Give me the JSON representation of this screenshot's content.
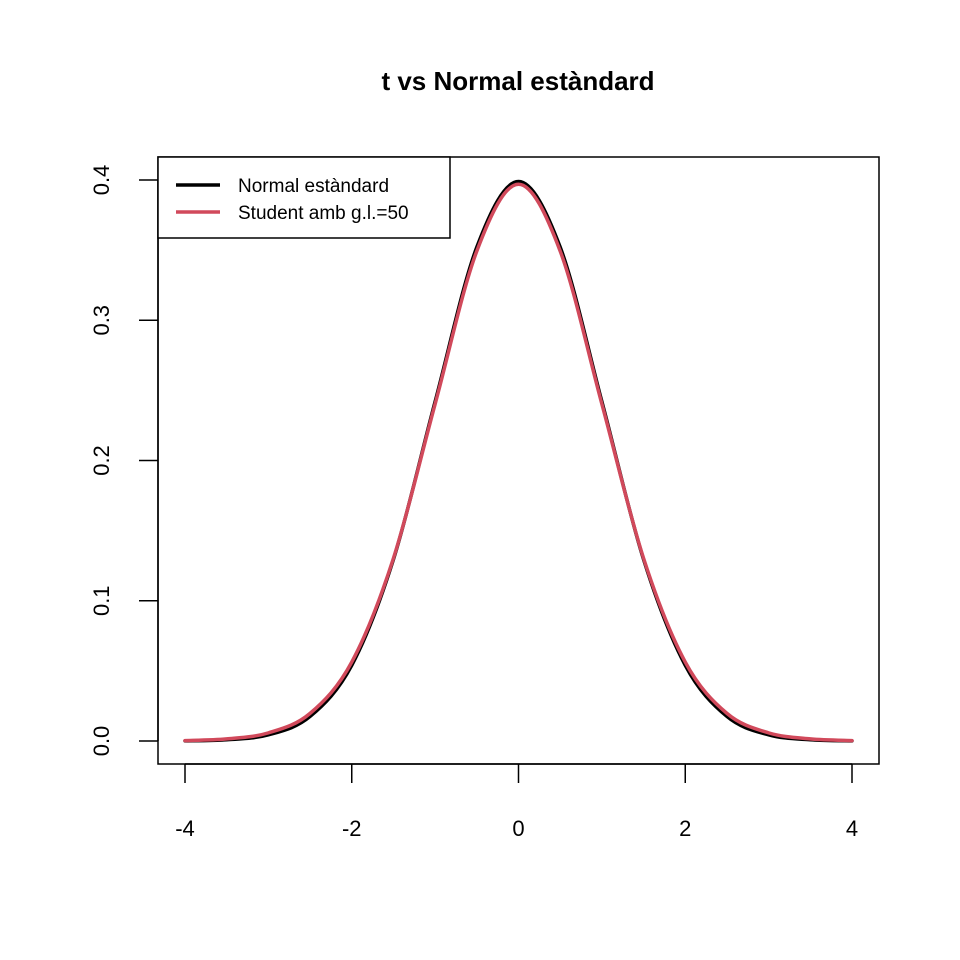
{
  "chart_data": {
    "type": "line",
    "title": "t vs Normal estàndard",
    "xlabel": "",
    "ylabel": "",
    "xlim": [
      -4,
      4
    ],
    "ylim": [
      0,
      0.4
    ],
    "x_ticks": [
      "-4",
      "-2",
      "0",
      "2",
      "4"
    ],
    "y_ticks": [
      "0.0",
      "0.1",
      "0.2",
      "0.3",
      "0.4"
    ],
    "grid": false,
    "legend_position": "top-left",
    "x": [
      -4.0,
      -3.5,
      -3.0,
      -2.5,
      -2.0,
      -1.5,
      -1.0,
      -0.5,
      0.0,
      0.5,
      1.0,
      1.5,
      2.0,
      2.5,
      3.0,
      3.5,
      4.0
    ],
    "series": [
      {
        "name": "Normal estàndard",
        "color": "#000000",
        "values": [
          0.0001,
          0.0009,
          0.0044,
          0.0175,
          0.054,
          0.1295,
          0.242,
          0.3521,
          0.3989,
          0.3521,
          0.242,
          0.1295,
          0.054,
          0.0175,
          0.0044,
          0.0009,
          0.0001
        ]
      },
      {
        "name": "Student amb g.l.=50",
        "color": "#D1495B",
        "values": [
          0.0003,
          0.0015,
          0.0058,
          0.0197,
          0.0563,
          0.1303,
          0.2403,
          0.3493,
          0.397,
          0.3493,
          0.2403,
          0.1303,
          0.0563,
          0.0197,
          0.0058,
          0.0015,
          0.0003
        ]
      }
    ]
  }
}
